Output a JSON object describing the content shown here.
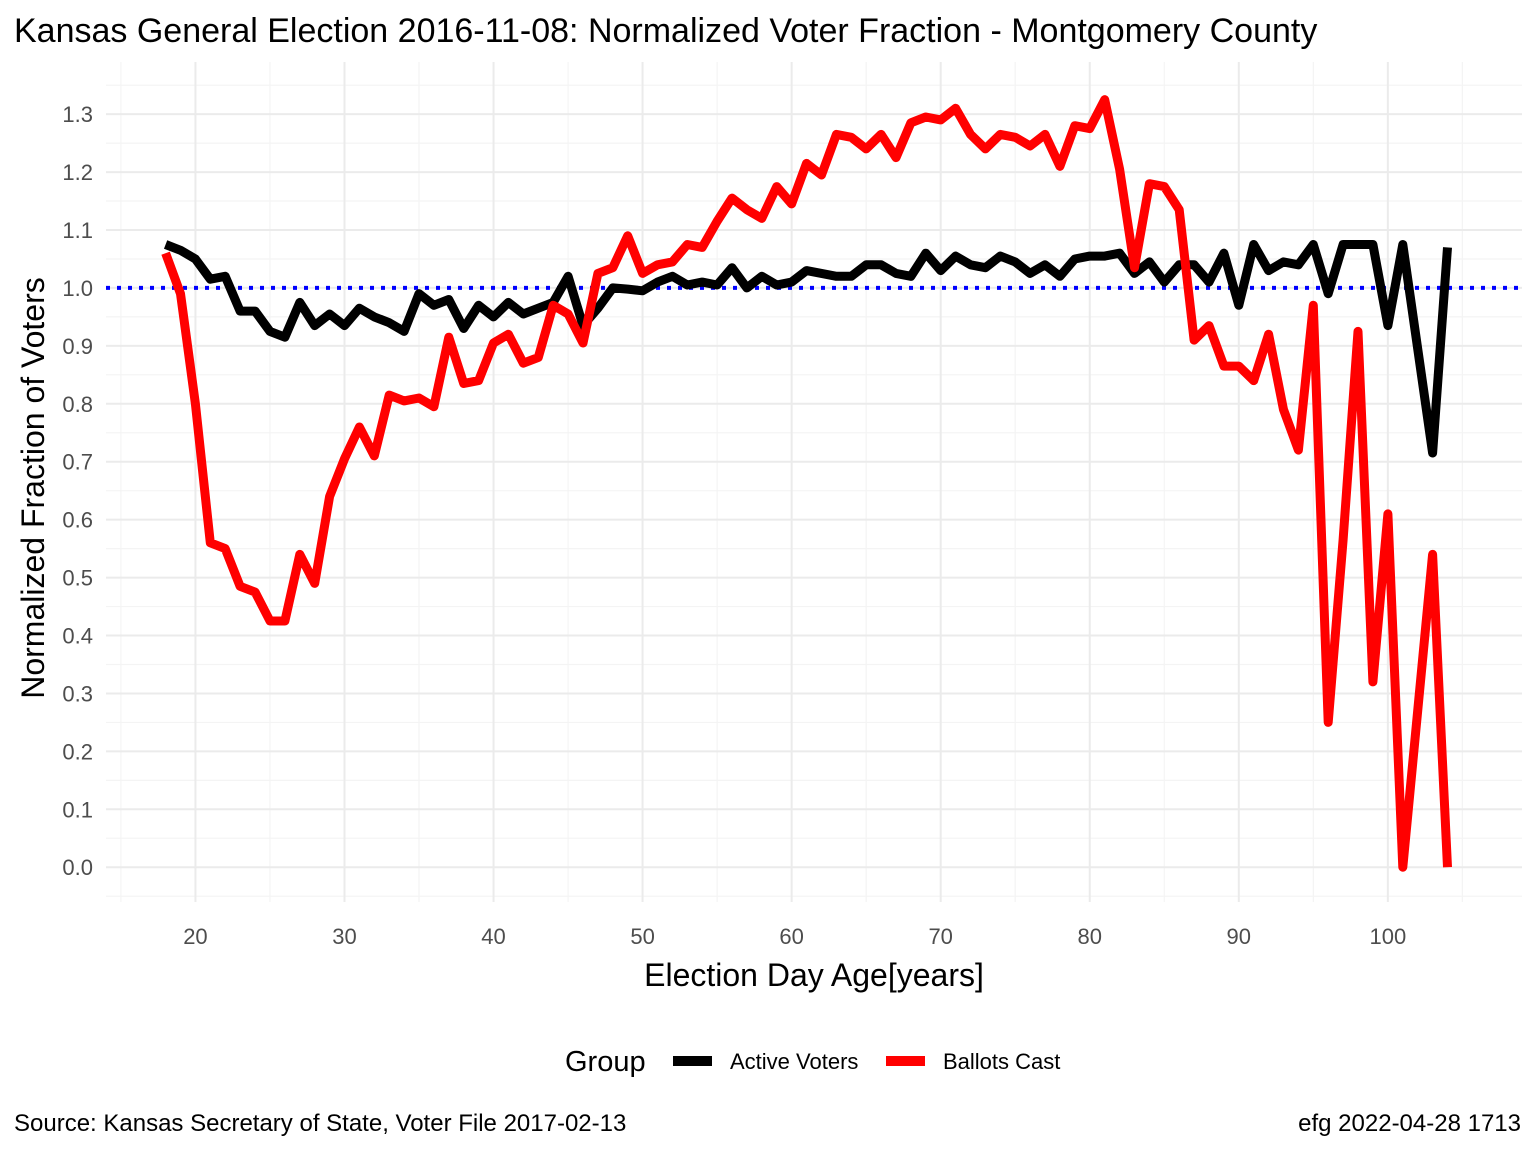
{
  "title": "Kansas General Election 2016-11-08:  Normalized Voter Fraction - Montgomery County",
  "caption_left": "Source:  Kansas Secretary of State, Voter File  2017-02-13",
  "caption_right": "efg 2022-04-28 1713",
  "legend": {
    "title": "Group",
    "items": [
      {
        "label": "Active Voters",
        "color": "#000000"
      },
      {
        "label": "Ballots Cast",
        "color": "#ff0000"
      }
    ]
  },
  "chart_data": {
    "type": "line",
    "title": "Kansas General Election 2016-11-08:  Normalized Voter Fraction - Montgomery County",
    "xlabel": "Election Day Age[years]",
    "ylabel": "Normalized Fraction of Voters",
    "xlim": [
      14,
      109
    ],
    "ylim": [
      -0.06,
      1.39
    ],
    "xticks": [
      20,
      30,
      40,
      50,
      60,
      70,
      80,
      90,
      100
    ],
    "yticks": [
      0.0,
      0.1,
      0.2,
      0.3,
      0.4,
      0.5,
      0.6,
      0.7,
      0.8,
      0.9,
      1.0,
      1.1,
      1.2,
      1.3
    ],
    "ytick_labels": [
      "0.0",
      "0.1",
      "0.2",
      "0.3",
      "0.4",
      "0.5",
      "0.6",
      "0.7",
      "0.8",
      "0.9",
      "1.0",
      "1.1",
      "1.2",
      "1.3"
    ],
    "grid": true,
    "legend_position": "bottom",
    "reference_line": {
      "y": 1.0,
      "color": "#0000ff",
      "style": "dotted"
    },
    "x": [
      18,
      19,
      20,
      21,
      22,
      23,
      24,
      25,
      26,
      27,
      28,
      29,
      30,
      31,
      32,
      33,
      34,
      35,
      36,
      37,
      38,
      39,
      40,
      41,
      42,
      43,
      44,
      45,
      46,
      47,
      48,
      49,
      50,
      51,
      52,
      53,
      54,
      55,
      56,
      57,
      58,
      59,
      60,
      61,
      62,
      63,
      64,
      65,
      66,
      67,
      68,
      69,
      70,
      71,
      72,
      73,
      74,
      75,
      76,
      77,
      78,
      79,
      80,
      81,
      82,
      83,
      84,
      85,
      86,
      87,
      88,
      89,
      90,
      91,
      92,
      93,
      94,
      95,
      96,
      97,
      98,
      99,
      100,
      101,
      102,
      103,
      104
    ],
    "series": [
      {
        "name": "Active Voters",
        "color": "#000000",
        "values": [
          1.075,
          1.065,
          1.05,
          1.015,
          1.02,
          0.96,
          0.96,
          0.925,
          0.915,
          0.975,
          0.935,
          0.955,
          0.935,
          0.965,
          0.95,
          0.94,
          0.925,
          0.99,
          0.97,
          0.98,
          0.93,
          0.97,
          0.95,
          0.975,
          0.955,
          0.965,
          0.975,
          1.02,
          0.935,
          0.965,
          1.0,
          0.998,
          0.995,
          1.01,
          1.02,
          1.005,
          1.01,
          1.005,
          1.035,
          1.0,
          1.02,
          1.005,
          1.01,
          1.03,
          1.025,
          1.02,
          1.02,
          1.04,
          1.04,
          1.025,
          1.02,
          1.06,
          1.03,
          1.055,
          1.04,
          1.035,
          1.055,
          1.045,
          1.025,
          1.04,
          1.02,
          1.05,
          1.055,
          1.055,
          1.06,
          1.025,
          1.045,
          1.01,
          1.04,
          1.04,
          1.01,
          1.06,
          0.97,
          1.075,
          1.03,
          1.045,
          1.04,
          1.075,
          0.99,
          1.075,
          1.075,
          1.075,
          0.935,
          1.075,
          0.895,
          0.715,
          1.07
        ]
      },
      {
        "name": "Ballots Cast",
        "color": "#ff0000",
        "values": [
          1.06,
          0.99,
          0.8,
          0.56,
          0.55,
          0.485,
          0.475,
          0.425,
          0.425,
          0.54,
          0.49,
          0.64,
          0.705,
          0.76,
          0.71,
          0.815,
          0.805,
          0.81,
          0.795,
          0.915,
          0.835,
          0.84,
          0.905,
          0.92,
          0.87,
          0.88,
          0.97,
          0.955,
          0.905,
          1.025,
          1.035,
          1.09,
          1.025,
          1.04,
          1.045,
          1.075,
          1.07,
          1.115,
          1.155,
          1.135,
          1.12,
          1.175,
          1.145,
          1.215,
          1.195,
          1.265,
          1.26,
          1.24,
          1.265,
          1.225,
          1.285,
          1.295,
          1.29,
          1.31,
          1.265,
          1.24,
          1.265,
          1.26,
          1.245,
          1.265,
          1.21,
          1.28,
          1.275,
          1.325,
          1.205,
          1.035,
          1.18,
          1.175,
          1.135,
          0.91,
          0.935,
          0.865,
          0.865,
          0.84,
          0.92,
          0.79,
          0.72,
          0.97,
          0.25,
          0.565,
          0.925,
          0.32,
          0.61,
          0.0,
          0.27,
          0.54,
          0.0
        ]
      }
    ]
  }
}
